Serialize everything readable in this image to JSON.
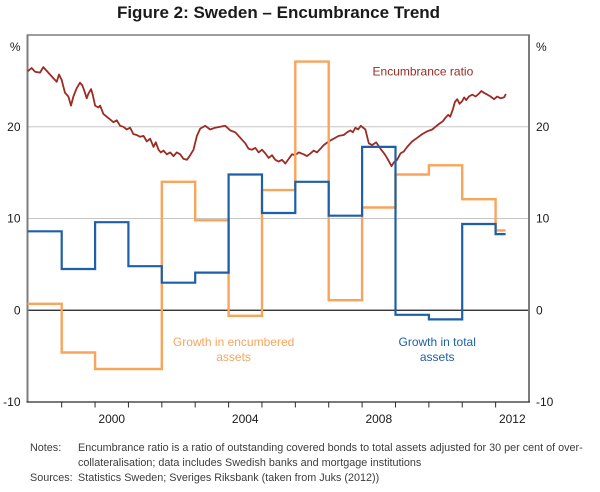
{
  "title": "Figure 2: Sweden – Encumbrance Trend",
  "notes": {
    "label": "Notes:",
    "text": "Encumbrance ratio is a ratio of outstanding covered bonds to total assets adjusted for 30 per cent of over-collateralisation; data includes Swedish banks and mortgage institutions"
  },
  "sources": {
    "label": "Sources:",
    "text": "Statistics Sweden; Sveriges Riksbank (taken from Juks (2012))"
  },
  "chart_data": {
    "type": "line",
    "title": "Figure 2: Sweden – Encumbrance Trend",
    "xlim": [
      1998,
      2013
    ],
    "ylim": [
      -10,
      30
    ],
    "unit_left": "%",
    "unit_right": "%",
    "grid": "horizontal gridlines at 10 and 20, solid black zero line",
    "gridlines_y": [
      10,
      20
    ],
    "zero_line": true,
    "colors": {
      "encumbrance_ratio": "#9b2b23",
      "growth_encumbered": "#f9a45b",
      "growth_total": "#1e5fa9",
      "gridline": "#c6c6c6",
      "frame": "#7d7d7d",
      "axis_text": "#1a1a1a"
    },
    "y_axis": {
      "ticks": [
        {
          "v": 20,
          "label": "20"
        },
        {
          "v": 10,
          "label": "10"
        },
        {
          "v": 0,
          "label": "0"
        },
        {
          "v": -10,
          "label": "-10"
        }
      ]
    },
    "x_axis": {
      "tick_years": [
        1999,
        2000,
        2001,
        2002,
        2003,
        2004,
        2005,
        2006,
        2007,
        2008,
        2009,
        2010,
        2011,
        2012
      ],
      "labels": [
        {
          "year": 2000,
          "label": "2000"
        },
        {
          "year": 2004,
          "label": "2004"
        },
        {
          "year": 2008,
          "label": "2008"
        },
        {
          "year": 2012,
          "label": "2012"
        }
      ]
    },
    "series": [
      {
        "name": "Encumbrance ratio",
        "id": "encumbrance-ratio",
        "type": "line",
        "color": "#9b2b23",
        "width": 1.8,
        "points": [
          [
            1998.0,
            26.1
          ],
          [
            1998.1,
            26.4
          ],
          [
            1998.2,
            26.0
          ],
          [
            1998.35,
            25.9
          ],
          [
            1998.45,
            26.5
          ],
          [
            1998.6,
            25.9
          ],
          [
            1998.75,
            25.3
          ],
          [
            1998.85,
            24.9
          ],
          [
            1998.92,
            25.7
          ],
          [
            1999.0,
            25.1
          ],
          [
            1999.05,
            24.4
          ],
          [
            1999.1,
            23.7
          ],
          [
            1999.2,
            23.3
          ],
          [
            1999.28,
            22.3
          ],
          [
            1999.35,
            23.3
          ],
          [
            1999.45,
            24.2
          ],
          [
            1999.55,
            24.8
          ],
          [
            1999.62,
            24.5
          ],
          [
            1999.7,
            23.7
          ],
          [
            1999.75,
            23.1
          ],
          [
            1999.8,
            23.6
          ],
          [
            1999.88,
            24.1
          ],
          [
            1999.93,
            23.5
          ],
          [
            2000.0,
            22.3
          ],
          [
            2000.1,
            22.1
          ],
          [
            2000.15,
            22.3
          ],
          [
            2000.25,
            21.4
          ],
          [
            2000.35,
            21.1
          ],
          [
            2000.45,
            20.8
          ],
          [
            2000.55,
            20.5
          ],
          [
            2000.65,
            20.7
          ],
          [
            2000.75,
            20.1
          ],
          [
            2000.85,
            20.0
          ],
          [
            2000.95,
            19.7
          ],
          [
            2001.05,
            19.9
          ],
          [
            2001.15,
            19.2
          ],
          [
            2001.25,
            19.1
          ],
          [
            2001.35,
            18.9
          ],
          [
            2001.45,
            19.0
          ],
          [
            2001.55,
            18.4
          ],
          [
            2001.65,
            18.7
          ],
          [
            2001.75,
            17.8
          ],
          [
            2001.82,
            18.3
          ],
          [
            2001.9,
            17.5
          ],
          [
            2001.97,
            17.2
          ],
          [
            2002.05,
            17.4
          ],
          [
            2002.15,
            17.0
          ],
          [
            2002.25,
            17.2
          ],
          [
            2002.35,
            16.8
          ],
          [
            2002.45,
            17.2
          ],
          [
            2002.55,
            17.0
          ],
          [
            2002.65,
            16.5
          ],
          [
            2002.75,
            16.4
          ],
          [
            2002.85,
            16.9
          ],
          [
            2002.95,
            17.5
          ],
          [
            2003.05,
            19.0
          ],
          [
            2003.15,
            19.8
          ],
          [
            2003.3,
            20.1
          ],
          [
            2003.45,
            19.7
          ],
          [
            2003.6,
            19.9
          ],
          [
            2003.75,
            20.0
          ],
          [
            2003.9,
            20.1
          ],
          [
            2004.05,
            19.6
          ],
          [
            2004.2,
            19.4
          ],
          [
            2004.35,
            18.8
          ],
          [
            2004.5,
            18.2
          ],
          [
            2004.6,
            17.6
          ],
          [
            2004.7,
            17.5
          ],
          [
            2004.8,
            17.7
          ],
          [
            2004.9,
            17.2
          ],
          [
            2005.0,
            17.5
          ],
          [
            2005.1,
            17.1
          ],
          [
            2005.2,
            16.6
          ],
          [
            2005.3,
            16.9
          ],
          [
            2005.4,
            16.4
          ],
          [
            2005.5,
            16.2
          ],
          [
            2005.6,
            16.4
          ],
          [
            2005.7,
            16.0
          ],
          [
            2005.8,
            16.5
          ],
          [
            2005.9,
            17.0
          ],
          [
            2006.0,
            16.9
          ],
          [
            2006.1,
            17.2
          ],
          [
            2006.25,
            17.0
          ],
          [
            2006.35,
            16.8
          ],
          [
            2006.45,
            17.1
          ],
          [
            2006.55,
            17.4
          ],
          [
            2006.65,
            17.2
          ],
          [
            2006.75,
            17.6
          ],
          [
            2006.85,
            18.0
          ],
          [
            2007.0,
            18.4
          ],
          [
            2007.15,
            18.7
          ],
          [
            2007.3,
            19.0
          ],
          [
            2007.45,
            19.1
          ],
          [
            2007.55,
            19.4
          ],
          [
            2007.65,
            19.6
          ],
          [
            2007.72,
            19.4
          ],
          [
            2007.8,
            19.9
          ],
          [
            2007.88,
            19.7
          ],
          [
            2007.96,
            20.1
          ],
          [
            2008.1,
            19.7
          ],
          [
            2008.2,
            18.2
          ],
          [
            2008.3,
            18.0
          ],
          [
            2008.42,
            18.3
          ],
          [
            2008.55,
            17.6
          ],
          [
            2008.68,
            17.0
          ],
          [
            2008.78,
            16.4
          ],
          [
            2008.88,
            15.7
          ],
          [
            2008.95,
            16.1
          ],
          [
            2009.05,
            16.4
          ],
          [
            2009.15,
            17.1
          ],
          [
            2009.25,
            17.3
          ],
          [
            2009.35,
            17.8
          ],
          [
            2009.5,
            18.4
          ],
          [
            2009.65,
            18.8
          ],
          [
            2009.8,
            19.2
          ],
          [
            2009.95,
            19.5
          ],
          [
            2010.1,
            19.7
          ],
          [
            2010.2,
            20.0
          ],
          [
            2010.3,
            20.3
          ],
          [
            2010.42,
            20.6
          ],
          [
            2010.5,
            21.0
          ],
          [
            2010.58,
            21.3
          ],
          [
            2010.64,
            21.1
          ],
          [
            2010.72,
            21.9
          ],
          [
            2010.78,
            22.7
          ],
          [
            2010.85,
            23.0
          ],
          [
            2010.92,
            22.5
          ],
          [
            2011.0,
            22.8
          ],
          [
            2011.06,
            23.2
          ],
          [
            2011.12,
            22.9
          ],
          [
            2011.2,
            23.3
          ],
          [
            2011.3,
            23.5
          ],
          [
            2011.4,
            23.3
          ],
          [
            2011.5,
            23.6
          ],
          [
            2011.57,
            23.9
          ],
          [
            2011.65,
            23.7
          ],
          [
            2011.75,
            23.5
          ],
          [
            2011.85,
            23.3
          ],
          [
            2011.95,
            23.0
          ],
          [
            2012.05,
            23.3
          ],
          [
            2012.15,
            23.1
          ],
          [
            2012.25,
            23.2
          ],
          [
            2012.3,
            23.5
          ]
        ]
      },
      {
        "name": "Growth in encumbered assets",
        "id": "growth-encumbered",
        "type": "step",
        "color": "#f9a45b",
        "width": 2.4,
        "years": [
          1998,
          1999,
          2000,
          2001,
          2002,
          2003,
          2004,
          2005,
          2006,
          2007,
          2008,
          2009,
          2010,
          2011,
          2012
        ],
        "values": [
          0.7,
          -4.6,
          -6.4,
          -6.4,
          14.0,
          9.8,
          -0.6,
          13.1,
          27.1,
          1.1,
          11.2,
          14.8,
          15.8,
          12.1,
          8.7
        ],
        "end": 2012.3
      },
      {
        "name": "Growth in total assets",
        "id": "growth-total",
        "type": "step",
        "color": "#1e5fa9",
        "width": 2.2,
        "years": [
          1998,
          1999,
          2000,
          2001,
          2002,
          2003,
          2004,
          2005,
          2006,
          2007,
          2008,
          2009,
          2010,
          2011,
          2012
        ],
        "values": [
          8.6,
          4.5,
          9.6,
          4.8,
          3.0,
          4.1,
          14.8,
          10.6,
          14.0,
          10.3,
          17.8,
          -0.5,
          -1.0,
          9.4,
          8.3
        ],
        "end": 2012.3
      }
    ],
    "annotations": [
      {
        "id": "encumbrance-ratio-label",
        "lines": [
          "Encumbrance ratio"
        ],
        "x": 2009.82,
        "y": 25.6,
        "color": "#9b2b23"
      },
      {
        "id": "growth-encumbered-label",
        "lines": [
          "Growth in encumbered",
          "assets"
        ],
        "x": 2004.15,
        "y": -3.9,
        "color": "#f9a45b"
      },
      {
        "id": "growth-total-label",
        "lines": [
          "Growth in total",
          "assets"
        ],
        "x": 2010.25,
        "y": -3.9,
        "color": "#1e5fa9"
      }
    ],
    "legend_position": "inline annotations"
  }
}
